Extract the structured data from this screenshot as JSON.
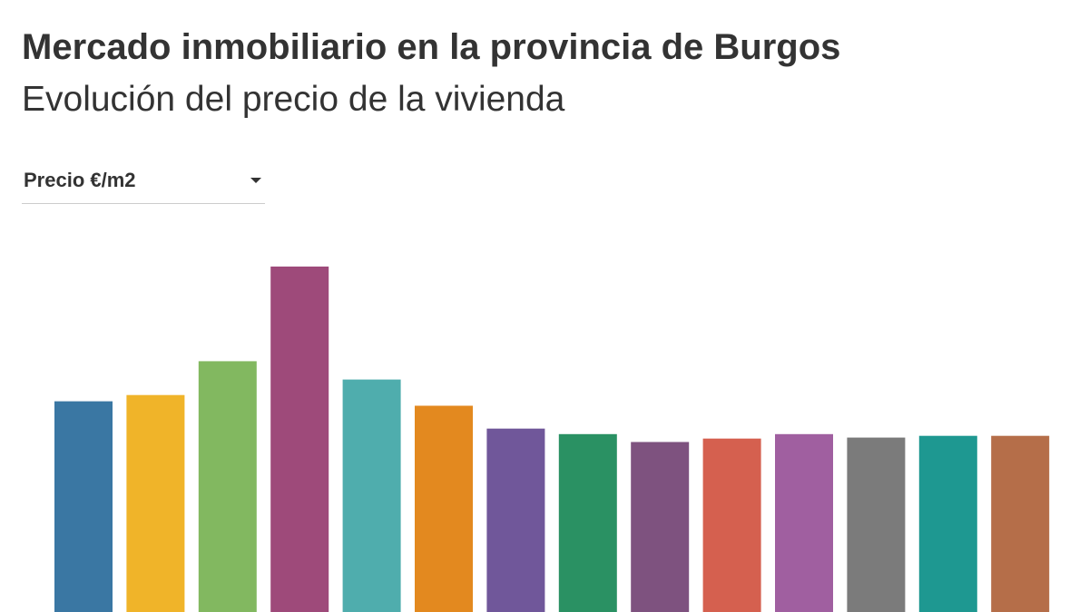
{
  "header": {
    "title": "Mercado inmobiliario en la provincia de Burgos",
    "subtitle": "Evolución del precio de la vivienda"
  },
  "selector": {
    "selected": "Precio €/m2",
    "icon": "caret-down-icon"
  },
  "chart_data": {
    "type": "bar",
    "grid": false,
    "legend": "none",
    "ylim": [
      0,
      1000
    ],
    "values": [
      610,
      628,
      726,
      1000,
      673,
      597,
      531,
      515,
      492,
      502,
      515,
      505,
      510,
      510
    ],
    "colors": [
      "#3a77a3",
      "#f0b429",
      "#82b860",
      "#9e4a7a",
      "#4fadad",
      "#e3891f",
      "#70579a",
      "#2a9163",
      "#7e527f",
      "#d5604f",
      "#a05fa0",
      "#7b7b7b",
      "#1e9891",
      "#b56e49"
    ]
  }
}
